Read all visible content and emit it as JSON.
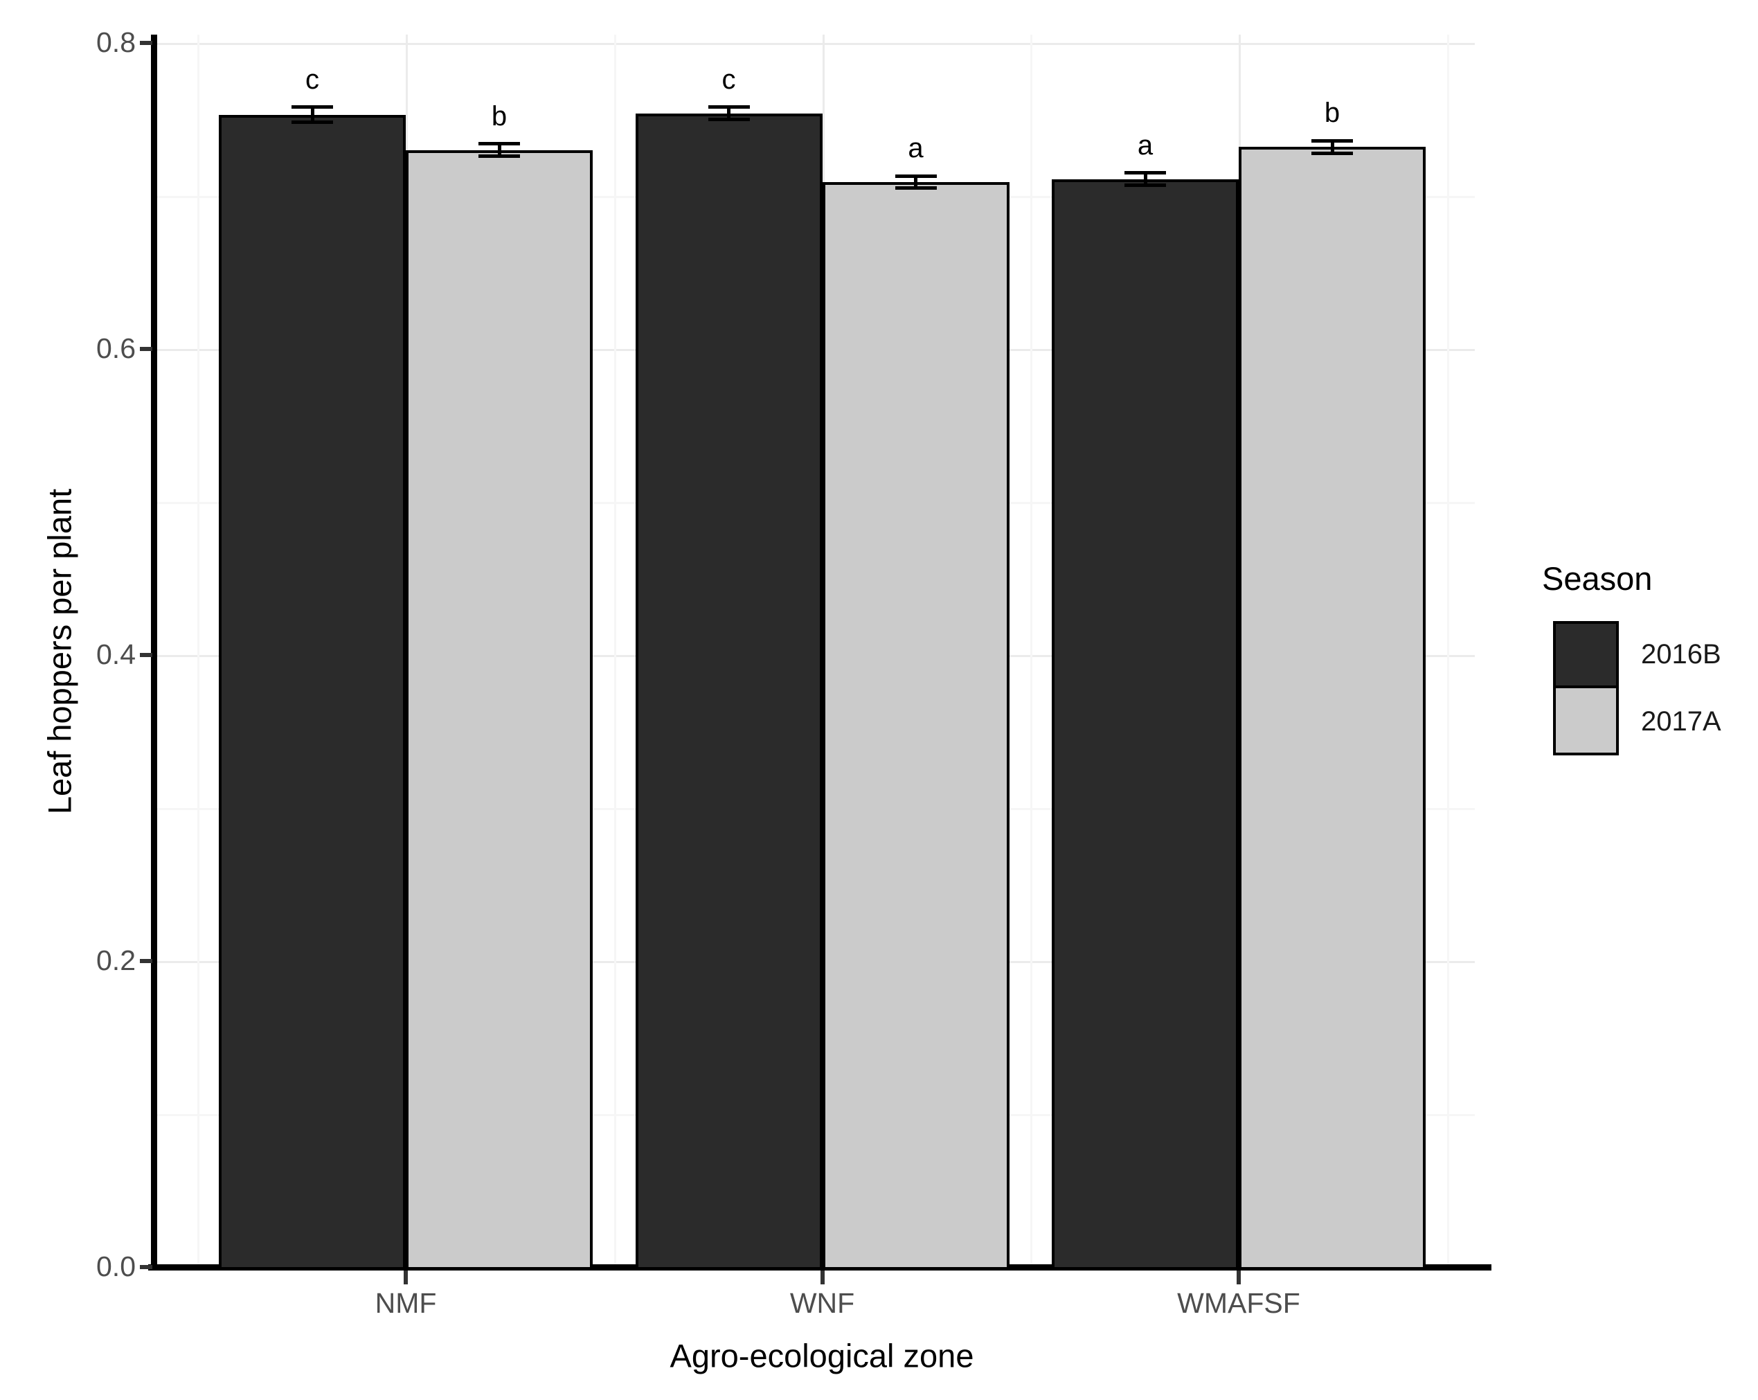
{
  "chart_data": {
    "type": "bar",
    "title": "",
    "xlabel": "Agro-ecological zone",
    "ylabel": "Leaf hoppers per plant",
    "categories": [
      "NMF",
      "WNF",
      "WMAFSF"
    ],
    "series": [
      {
        "name": "2016B",
        "color": "#2b2b2b",
        "values": [
          0.753,
          0.754,
          0.711
        ],
        "errors": [
          0.005,
          0.004,
          0.004
        ],
        "sig_letters": [
          "c",
          "c",
          "a"
        ]
      },
      {
        "name": "2017A",
        "color": "#cbcbcb",
        "values": [
          0.73,
          0.709,
          0.732
        ],
        "errors": [
          0.004,
          0.004,
          0.004
        ],
        "sig_letters": [
          "b",
          "a",
          "b"
        ]
      }
    ],
    "ylim": [
      0.0,
      0.8
    ],
    "yticks": [
      0.0,
      0.2,
      0.4,
      0.6,
      0.8
    ],
    "ytick_labels": [
      "0.0",
      "0.2",
      "0.4",
      "0.6",
      "0.8"
    ],
    "yticks_minor": [
      0.1,
      0.3,
      0.5,
      0.7
    ],
    "grid": true,
    "legend_title": "Season",
    "legend_position": "right",
    "colors": {
      "bar_outline": "#000000",
      "axis_line": "#000000",
      "tick_label": "#4d4d4d",
      "grid_major": "#ebebeb",
      "grid_minor": "#f6f6f6",
      "background": "#ffffff"
    }
  }
}
